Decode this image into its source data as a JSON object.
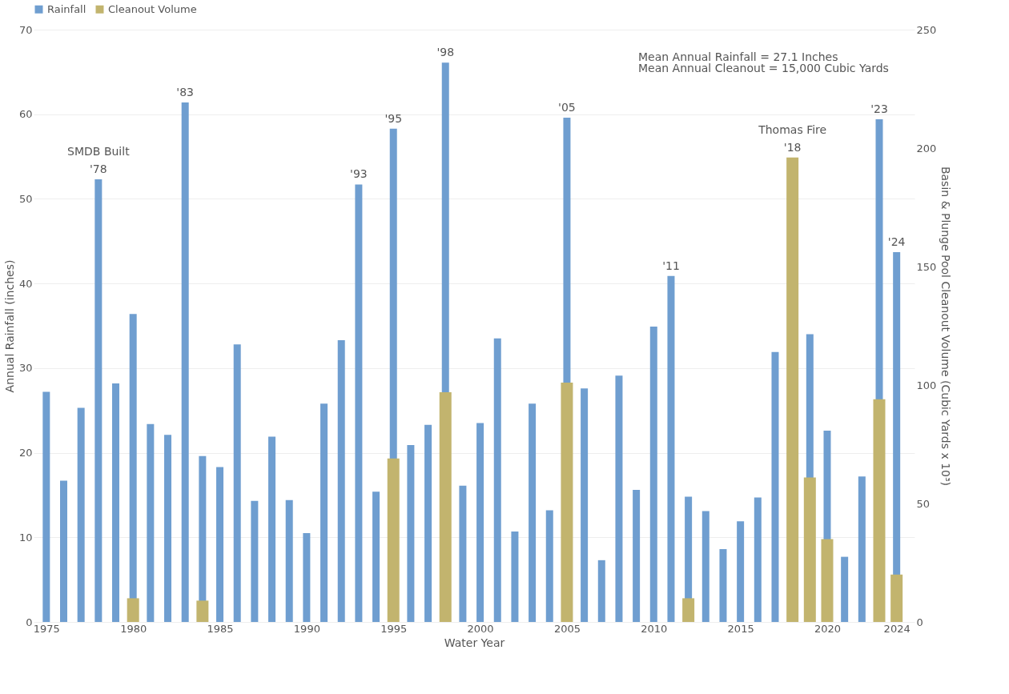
{
  "chart_data": {
    "type": "bar",
    "ylabel": "Annual Rainfall (inches)",
    "y2label": "Basin & Plunge Pool Cleanout Volume (Cubic Yards x 10³)",
    "xlabel": "Water Year",
    "x": [
      1975,
      1976,
      1977,
      1978,
      1979,
      1980,
      1981,
      1982,
      1983,
      1984,
      1985,
      1986,
      1987,
      1988,
      1989,
      1990,
      1991,
      1992,
      1993,
      1994,
      1995,
      1996,
      1997,
      1998,
      1999,
      2000,
      2001,
      2002,
      2003,
      2004,
      2005,
      2006,
      2007,
      2008,
      2009,
      2010,
      2011,
      2012,
      2013,
      2014,
      2015,
      2016,
      2017,
      2018,
      2019,
      2020,
      2021,
      2022,
      2023,
      2024
    ],
    "series": [
      {
        "name": "Rainfall",
        "color": "#6f9ed0",
        "values": [
          27.2,
          16.7,
          25.3,
          52.3,
          28.2,
          36.4,
          23.4,
          22.1,
          61.4,
          19.6,
          18.3,
          32.8,
          14.3,
          21.9,
          14.4,
          10.5,
          25.8,
          33.3,
          51.7,
          15.4,
          58.3,
          20.9,
          23.3,
          66.1,
          16.1,
          23.5,
          33.5,
          10.7,
          25.8,
          13.2,
          59.6,
          27.6,
          7.3,
          29.1,
          15.6,
          34.9,
          40.9,
          14.8,
          13.1,
          8.6,
          11.9,
          14.7,
          31.9,
          null,
          34.0,
          22.6,
          7.7,
          17.2,
          59.4,
          43.7
        ]
      },
      {
        "name": "Cleanout Volume",
        "color": "#c2b46e",
        "axis": "y2",
        "values": [
          null,
          null,
          null,
          null,
          null,
          10,
          null,
          null,
          null,
          9,
          null,
          null,
          null,
          null,
          null,
          null,
          null,
          null,
          null,
          null,
          69,
          null,
          null,
          97,
          null,
          null,
          null,
          null,
          null,
          null,
          101,
          null,
          null,
          null,
          null,
          null,
          null,
          10,
          null,
          null,
          null,
          null,
          null,
          196,
          61,
          35,
          null,
          null,
          94,
          20
        ]
      }
    ],
    "xlim": [
      1974.5,
      2024.8
    ],
    "xticks": [
      1975,
      1980,
      1985,
      1990,
      1995,
      2000,
      2005,
      2010,
      2015,
      2020,
      2024
    ],
    "ylim": [
      0,
      70
    ],
    "yticks": [
      0,
      10,
      20,
      30,
      40,
      50,
      60,
      70
    ],
    "y2lim": [
      0,
      250
    ],
    "y2ticks": [
      0,
      50,
      100,
      150,
      200,
      250
    ],
    "grid": "y",
    "legend": "top",
    "annotations": [
      {
        "text": "SMDB Built",
        "x": 1978,
        "y": 52.3
      },
      {
        "text": "'78",
        "x": 1978,
        "y": 52.3
      },
      {
        "text": "'83",
        "x": 1983,
        "y": 61.4
      },
      {
        "text": "'93",
        "x": 1993,
        "y": 51.7
      },
      {
        "text": "'95",
        "x": 1995,
        "y": 58.3
      },
      {
        "text": "'98",
        "x": 1998,
        "y": 66.1
      },
      {
        "text": "'05",
        "x": 2005,
        "y": 59.6
      },
      {
        "text": "'11",
        "x": 2011,
        "y": 40.9
      },
      {
        "text": "Thomas Fire",
        "x": 2018,
        "y": 54.9
      },
      {
        "text": "'18",
        "x": 2018,
        "y": 54.9
      },
      {
        "text": "'23",
        "x": 2023,
        "y": 59.4
      },
      {
        "text": "'24",
        "x": 2024,
        "y": 43.7
      },
      "Mean Annual Rainfall = 27.1 Inches",
      "Mean Annual Cleanout = 15,000 Cubic Yards"
    ]
  }
}
